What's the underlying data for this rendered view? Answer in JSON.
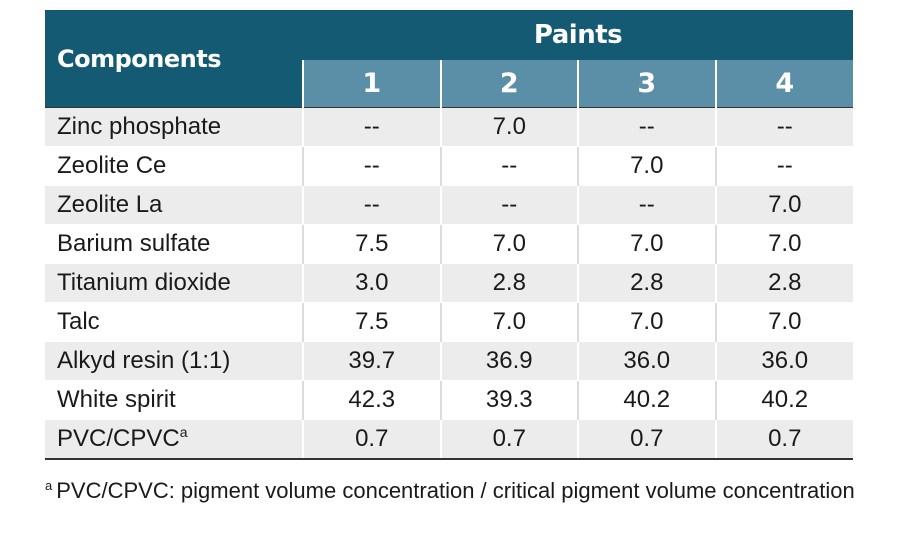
{
  "table": {
    "header": {
      "components_label": "Components",
      "paints_label": "Paints",
      "paint_numbers": [
        "1",
        "2",
        "3",
        "4"
      ]
    },
    "rows": [
      {
        "component": "Zinc phosphate",
        "superscript": "",
        "values": [
          "--",
          "7.0",
          "--",
          "--"
        ]
      },
      {
        "component": "Zeolite Ce",
        "superscript": "",
        "values": [
          "--",
          "--",
          "7.0",
          "--"
        ]
      },
      {
        "component": "Zeolite La",
        "superscript": "",
        "values": [
          "--",
          "--",
          "--",
          "7.0"
        ]
      },
      {
        "component": "Barium sulfate",
        "superscript": "",
        "values": [
          "7.5",
          "7.0",
          "7.0",
          "7.0"
        ]
      },
      {
        "component": "Titanium dioxide",
        "superscript": "",
        "values": [
          "3.0",
          "2.8",
          "2.8",
          "2.8"
        ]
      },
      {
        "component": "Talc",
        "superscript": "",
        "values": [
          "7.5",
          "7.0",
          "7.0",
          "7.0"
        ]
      },
      {
        "component": "Alkyd resin (1:1)",
        "superscript": "",
        "values": [
          "39.7",
          "36.9",
          "36.0",
          "36.0"
        ]
      },
      {
        "component": "White spirit",
        "superscript": "",
        "values": [
          "42.3",
          "39.3",
          "40.2",
          "40.2"
        ]
      },
      {
        "component": "PVC/CPVC",
        "superscript": "a",
        "values": [
          "0.7",
          "0.7",
          "0.7",
          "0.7"
        ]
      }
    ]
  },
  "footnote": {
    "marker": "a",
    "text": "PVC/CPVC: pigment volume concentration / critical pigment volume concentration"
  },
  "colors": {
    "header_dark": "#145a73",
    "header_light": "#5b8fa8",
    "row_shade": "#ececec"
  }
}
